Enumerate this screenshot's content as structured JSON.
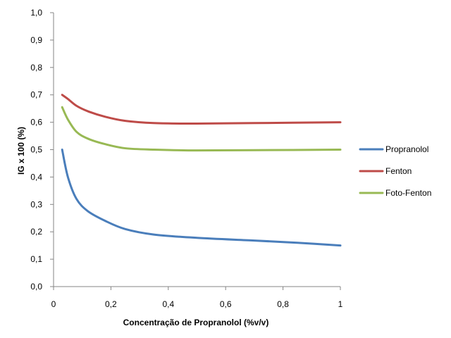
{
  "chart_data": {
    "type": "line",
    "title": "",
    "xlabel": "Concentração de Propranolol (%v/v)",
    "ylabel": "IG x 100 (%)",
    "xlim": [
      0,
      1
    ],
    "ylim": [
      0,
      1
    ],
    "x_ticks": [
      "0",
      "0,2",
      "0,4",
      "0,6",
      "0,8",
      "1"
    ],
    "y_ticks": [
      "0,0",
      "0,1",
      "0,2",
      "0,3",
      "0,4",
      "0,5",
      "0,6",
      "0,7",
      "0,8",
      "0,9",
      "1,0"
    ],
    "grid": false,
    "legend_position": "right",
    "series": [
      {
        "name": "Propranolol",
        "color": "#4A7EBB",
        "x": [
          0.03,
          0.05,
          0.08,
          0.12,
          0.18,
          0.25,
          0.35,
          0.5,
          0.7,
          0.85,
          1.0
        ],
        "y": [
          0.5,
          0.4,
          0.32,
          0.275,
          0.24,
          0.21,
          0.19,
          0.178,
          0.168,
          0.16,
          0.15
        ]
      },
      {
        "name": "Fenton",
        "color": "#BE4B48",
        "x": [
          0.03,
          0.05,
          0.08,
          0.12,
          0.18,
          0.25,
          0.35,
          0.5,
          0.7,
          1.0
        ],
        "y": [
          0.7,
          0.685,
          0.66,
          0.64,
          0.62,
          0.605,
          0.597,
          0.595,
          0.597,
          0.6
        ]
      },
      {
        "name": "Foto-Fenton",
        "color": "#98B954",
        "x": [
          0.03,
          0.05,
          0.08,
          0.12,
          0.18,
          0.25,
          0.35,
          0.5,
          0.7,
          1.0
        ],
        "y": [
          0.655,
          0.61,
          0.565,
          0.54,
          0.52,
          0.505,
          0.5,
          0.497,
          0.498,
          0.5
        ]
      }
    ]
  }
}
